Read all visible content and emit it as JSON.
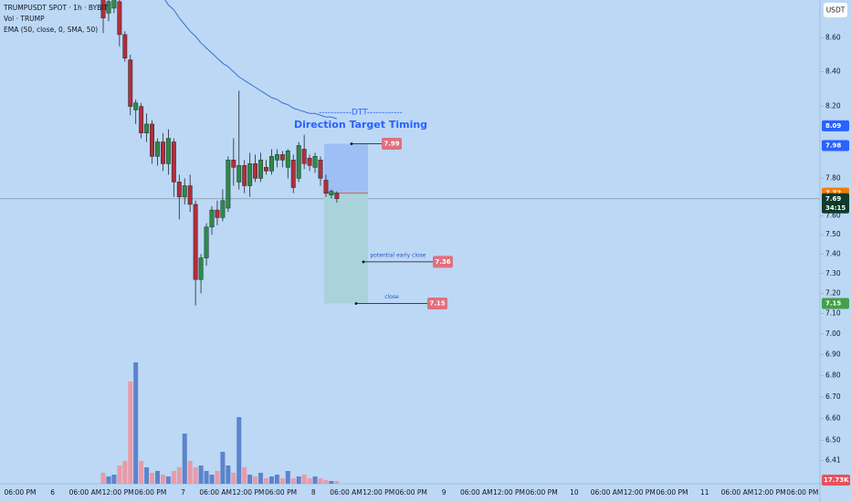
{
  "header": {
    "symbol": "TRUMPUSDT SPOT · 1h · BYBIT",
    "volume": "Vol · TRUMP",
    "ema": "EMA (50, close, 0, SMA, 50)"
  },
  "currency_button": "USDT",
  "chart_data": {
    "type": "candlestick",
    "log_scale": true,
    "ylim": [
      6.39,
      8.83
    ],
    "yticks": [
      {
        "value": 8.6,
        "label": "8.60"
      },
      {
        "value": 8.4,
        "label": "8.40"
      },
      {
        "value": 8.2,
        "label": "8.20"
      },
      {
        "value": 7.8,
        "label": "7.80"
      },
      {
        "value": 7.6,
        "label": "7.60"
      },
      {
        "value": 7.5,
        "label": "7.50"
      },
      {
        "value": 7.4,
        "label": "7.40"
      },
      {
        "value": 7.3,
        "label": "7.30"
      },
      {
        "value": 7.2,
        "label": "7.20"
      },
      {
        "value": 7.1,
        "label": "7.10"
      },
      {
        "value": 7.0,
        "label": "7.00"
      },
      {
        "value": 6.9,
        "label": "6.90"
      },
      {
        "value": 6.8,
        "label": "6.80"
      },
      {
        "value": 6.7,
        "label": "6.70"
      },
      {
        "value": 6.6,
        "label": "6.60"
      },
      {
        "value": 6.5,
        "label": "6.50"
      },
      {
        "value": 6.41,
        "label": "6.41"
      }
    ],
    "x_labels": [
      "06:00 PM",
      "6",
      "06:00 AM",
      "12:00 PM",
      "06:00 PM",
      "7",
      "06:00 AM",
      "12:00 PM",
      "06:00 PM",
      "8",
      "06:00 AM",
      "12:00 PM",
      "06:00 PM",
      "9",
      "06:00 AM",
      "12:00 PM",
      "06:00 PM",
      "10",
      "06:00 AM",
      "12:00 PM",
      "06:00 PM",
      "11",
      "06:00 AM",
      "12:00 PM",
      "06:00 PM"
    ],
    "up_color": "#2e8b45",
    "down_color": "#b32d3a",
    "open": [
      8.85,
      8.75,
      8.78,
      8.82,
      8.62,
      8.47,
      8.18,
      8.2,
      8.05,
      8.1,
      7.92,
      8.0,
      7.88,
      8.0,
      7.78,
      7.7,
      7.76,
      7.66,
      7.27,
      7.38,
      7.54,
      7.63,
      7.59,
      7.64,
      7.9,
      7.78,
      7.87,
      7.76,
      7.88,
      7.8,
      7.86,
      7.84,
      7.9,
      7.93,
      7.86,
      7.9,
      7.8,
      7.96,
      7.91,
      7.86,
      7.9,
      7.79,
      7.71,
      7.72
    ],
    "high": [
      8.88,
      8.86,
      8.88,
      8.85,
      8.64,
      8.5,
      8.24,
      8.22,
      8.16,
      8.12,
      8.02,
      8.05,
      8.07,
      8.02,
      7.82,
      7.8,
      7.82,
      7.68,
      7.4,
      7.56,
      7.65,
      7.68,
      7.74,
      7.92,
      8.02,
      8.29,
      7.9,
      7.94,
      7.93,
      7.94,
      7.9,
      7.96,
      7.96,
      7.95,
      7.96,
      7.93,
      8.0,
      8.04,
      7.93,
      7.94,
      7.92,
      7.82,
      7.74,
      7.73
    ],
    "low": [
      8.63,
      8.7,
      8.75,
      8.55,
      8.46,
      8.15,
      8.1,
      8.02,
      8.0,
      7.88,
      7.87,
      7.84,
      7.82,
      7.7,
      7.58,
      7.66,
      7.62,
      7.14,
      7.2,
      7.34,
      7.5,
      7.55,
      7.57,
      7.62,
      7.76,
      7.74,
      7.72,
      7.7,
      7.78,
      7.78,
      7.82,
      7.82,
      7.86,
      7.86,
      7.8,
      7.72,
      7.78,
      7.85,
      7.84,
      7.83,
      7.76,
      7.7,
      7.69,
      7.67
    ],
    "close": [
      8.72,
      8.82,
      8.86,
      8.62,
      8.48,
      8.2,
      8.22,
      8.05,
      8.1,
      7.92,
      8.0,
      7.88,
      8.02,
      7.78,
      7.7,
      7.76,
      7.66,
      7.27,
      7.38,
      7.54,
      7.63,
      7.59,
      7.68,
      7.9,
      7.86,
      7.87,
      7.76,
      7.88,
      7.8,
      7.9,
      7.84,
      7.92,
      7.93,
      7.9,
      7.95,
      7.75,
      7.98,
      7.88,
      7.87,
      7.92,
      7.8,
      7.72,
      7.73,
      7.69
    ],
    "ema": {
      "color": "#3b6fd6",
      "values": [
        null,
        null,
        null,
        null,
        null,
        null,
        null,
        null,
        null,
        null,
        null,
        8.85,
        8.8,
        8.77,
        8.72,
        8.68,
        8.64,
        8.61,
        8.57,
        8.54,
        8.51,
        8.48,
        8.45,
        8.43,
        8.4,
        8.37,
        8.35,
        8.33,
        8.31,
        8.29,
        8.27,
        8.25,
        8.24,
        8.22,
        8.21,
        8.19,
        8.18,
        8.17,
        8.16,
        8.16,
        8.15,
        8.14,
        8.14,
        8.13
      ]
    },
    "volume": {
      "up_color": "#5d83cc",
      "down_color": "#e99aa7",
      "values": [
        72,
        48,
        60,
        120,
        150,
        672,
        798,
        150,
        108,
        72,
        84,
        60,
        48,
        84,
        108,
        330,
        150,
        108,
        120,
        84,
        60,
        84,
        210,
        120,
        72,
        438,
        108,
        60,
        48,
        72,
        36,
        48,
        60,
        36,
        84,
        36,
        48,
        60,
        36,
        48,
        36,
        24,
        18,
        17.73
      ],
      "last_label": "17.73K"
    },
    "price_tags": [
      {
        "value": 8.09,
        "color": "#2962ff"
      },
      {
        "value": 7.98,
        "color": "#2962ff"
      },
      {
        "value": 7.72,
        "color": "#f57c00"
      },
      {
        "value": 7.69,
        "color": "#0d3b2c",
        "sub": "34:15"
      },
      {
        "value": 7.15,
        "color": "#43a047"
      }
    ],
    "annotation": {
      "title": "-----------DTT------------",
      "subtitle": "Direction Target Timing",
      "color": "#2962ff"
    },
    "trade": {
      "entry": 7.72,
      "target": 7.99,
      "early_close": 7.36,
      "early_close_text": "potential early close",
      "close": 7.15,
      "close_text": "close",
      "label_color": "#e0707f"
    }
  }
}
